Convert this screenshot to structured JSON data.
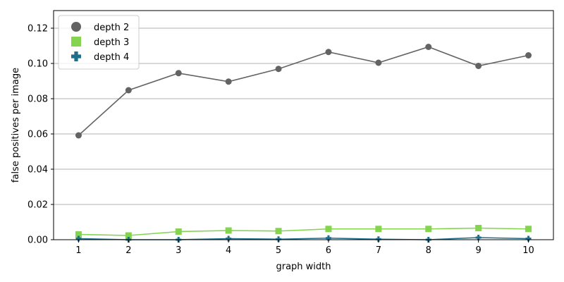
{
  "chart_data": {
    "type": "line",
    "title": "",
    "xlabel": "graph width",
    "ylabel": "false positives per image",
    "x": [
      1,
      2,
      3,
      4,
      5,
      6,
      7,
      8,
      9,
      10
    ],
    "xlim": [
      0.5,
      10.5
    ],
    "ylim": [
      0,
      0.13
    ],
    "yticks": [
      "0.00",
      "0.02",
      "0.04",
      "0.06",
      "0.08",
      "0.10",
      "0.12"
    ],
    "ytick_values": [
      0,
      0.02,
      0.04,
      0.06,
      0.08,
      0.1,
      0.12
    ],
    "grid": "horizontal",
    "legend_position": "top-left",
    "series": [
      {
        "name": "depth 2",
        "marker": "circle",
        "color": "#636363",
        "values": [
          0.0592,
          0.0848,
          0.0945,
          0.0897,
          0.0969,
          0.1065,
          0.1004,
          0.1094,
          0.0986,
          0.1046
        ]
      },
      {
        "name": "depth 3",
        "marker": "square",
        "color": "#84d44f",
        "values": [
          0.003,
          0.0024,
          0.0046,
          0.0052,
          0.0049,
          0.0061,
          0.0061,
          0.0061,
          0.0066,
          0.0061
        ]
      },
      {
        "name": "depth 4",
        "marker": "plus",
        "color": "#1f6f8b",
        "values": [
          0.0006,
          0.0,
          0.0,
          0.0006,
          0.0003,
          0.0009,
          0.0003,
          0.0,
          0.0012,
          0.0006
        ]
      }
    ]
  }
}
